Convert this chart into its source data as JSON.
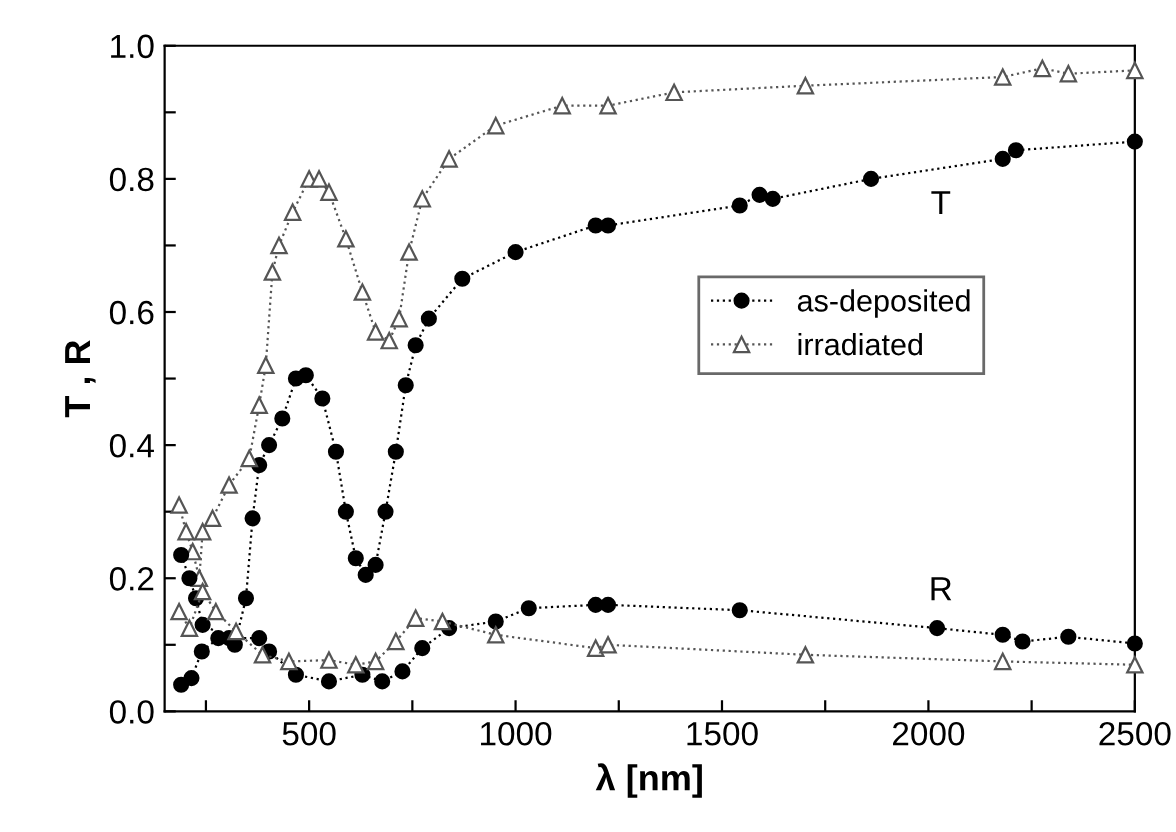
{
  "chart_data": {
    "type": "line",
    "xlabel": "λ [nm]",
    "ylabel": "T , R",
    "xlim": [
      150,
      2500
    ],
    "ylim": [
      0,
      1.0
    ],
    "xticks": [
      {
        "value": 250,
        "label": null
      },
      500,
      {
        "value": 750,
        "label": null
      },
      1000,
      {
        "value": 1250,
        "label": null
      },
      1500,
      {
        "value": 1750,
        "label": null
      },
      2000,
      {
        "value": 2250,
        "label": null
      },
      2500
    ],
    "yticks": [
      {
        "value": 0,
        "label": "0.0"
      },
      {
        "value": 0.1,
        "label": null
      },
      {
        "value": 0.2,
        "label": "0.2"
      },
      {
        "value": 0.3,
        "label": null
      },
      {
        "value": 0.4,
        "label": "0.4"
      },
      {
        "value": 0.5,
        "label": null
      },
      {
        "value": 0.6,
        "label": "0.6"
      },
      {
        "value": 0.7,
        "label": null
      },
      {
        "value": 0.8,
        "label": "0.8"
      },
      {
        "value": 0.9,
        "label": null
      },
      {
        "value": 1.0,
        "label": "1.0"
      }
    ],
    "grid": false,
    "legend": "right",
    "line_style": "dotted",
    "annotations": [
      "T",
      "R"
    ],
    "series": [
      {
        "name": "as-deposited",
        "color": "#000000",
        "marker": "circle",
        "x": [
          190,
          215,
          240,
          280,
          320,
          347,
          363,
          379,
          403,
          435,
          468,
          492,
          532,
          565,
          589,
          613,
          637,
          661,
          685,
          710,
          734,
          758,
          790,
          871,
          1000,
          1194,
          1224,
          1543,
          1591,
          1623,
          1861,
          2180,
          2212,
          2500
        ],
        "values": [
          0.04,
          0.05,
          0.09,
          0.11,
          0.1,
          0.17,
          0.29,
          0.37,
          0.4,
          0.44,
          0.5,
          0.505,
          0.47,
          0.39,
          0.3,
          0.23,
          0.205,
          0.22,
          0.3,
          0.39,
          0.49,
          0.55,
          0.59,
          0.65,
          0.69,
          0.73,
          0.73,
          0.76,
          0.776,
          0.77,
          0.8,
          0.83,
          0.843,
          0.856
        ]
      },
      {
        "name": "irradiated",
        "color": "#555555",
        "marker": "triangle",
        "x": [
          185,
          202,
          218,
          234,
          242,
          266,
          306,
          355,
          379,
          395,
          411,
          427,
          460,
          500,
          524,
          548,
          589,
          629,
          661,
          694,
          718,
          742,
          774,
          839,
          952,
          1113,
          1224,
          1384,
          1702,
          2180,
          2276,
          2339,
          2500
        ],
        "values": [
          0.31,
          0.27,
          0.24,
          0.2,
          0.27,
          0.29,
          0.34,
          0.38,
          0.46,
          0.52,
          0.66,
          0.7,
          0.75,
          0.8,
          0.8,
          0.78,
          0.71,
          0.63,
          0.57,
          0.557,
          0.59,
          0.69,
          0.77,
          0.83,
          0.88,
          0.91,
          0.91,
          0.93,
          0.94,
          0.953,
          0.966,
          0.958,
          0.963
        ]
      },
      {
        "color": "#000000",
        "marker": "circle",
        "x": [
          190,
          210,
          226,
          242,
          306,
          379,
          403,
          468,
          548,
          629,
          677,
          726,
          774,
          839,
          952,
          1032,
          1194,
          1224,
          1543,
          2021,
          2180,
          2228,
          2339,
          2500
        ],
        "values": [
          0.235,
          0.2,
          0.17,
          0.13,
          0.11,
          0.11,
          0.09,
          0.055,
          0.045,
          0.055,
          0.045,
          0.06,
          0.095,
          0.125,
          0.135,
          0.155,
          0.16,
          0.16,
          0.152,
          0.125,
          0.115,
          0.105,
          0.112,
          0.102
        ]
      },
      {
        "color": "#555555",
        "marker": "triangle",
        "x": [
          185,
          210,
          242,
          274,
          323,
          387,
          451,
          548,
          613,
          661,
          710,
          758,
          823,
          952,
          1194,
          1224,
          1702,
          2180,
          2500
        ],
        "values": [
          0.15,
          0.125,
          0.18,
          0.15,
          0.12,
          0.085,
          0.075,
          0.077,
          0.07,
          0.075,
          0.105,
          0.14,
          0.135,
          0.115,
          0.095,
          0.1,
          0.085,
          0.075,
          0.07
        ]
      }
    ]
  }
}
